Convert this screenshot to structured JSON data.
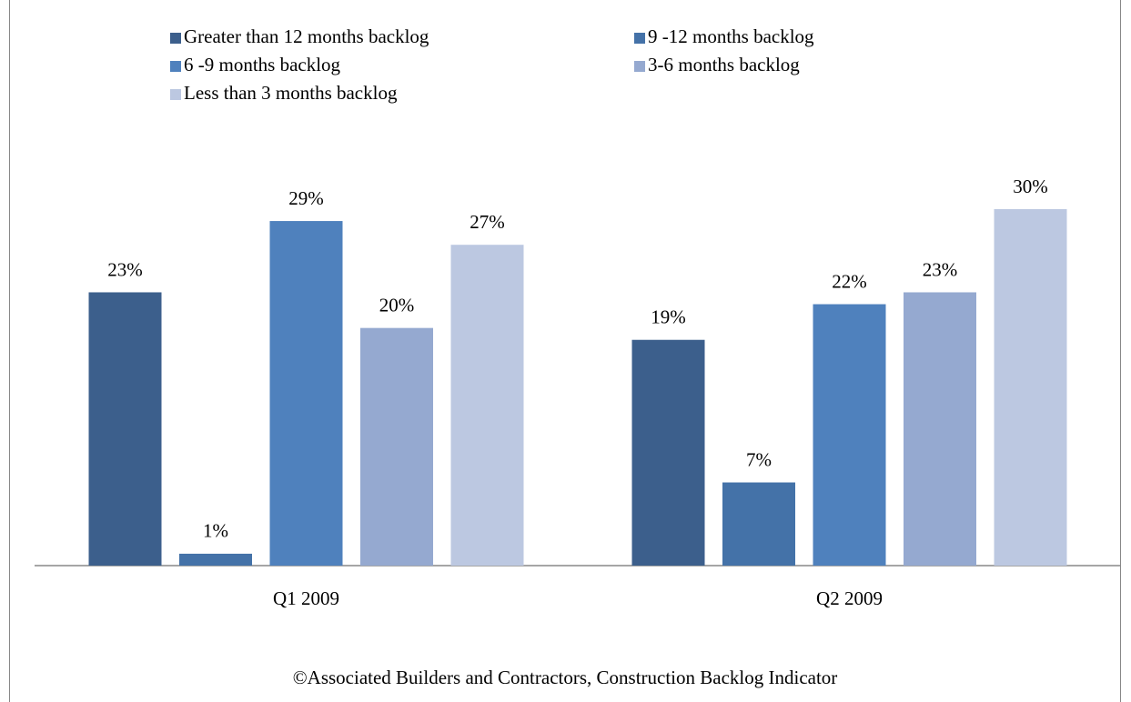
{
  "chart_data": {
    "type": "bar",
    "categories": [
      "Q1 2009",
      "Q2 2009"
    ],
    "series": [
      {
        "name": "Greater than 12 months backlog",
        "color": "#3c5f8c",
        "values": [
          23,
          19
        ],
        "value_labels": [
          "23%",
          "19%"
        ]
      },
      {
        "name": "9 -12 months backlog",
        "color": "#4472a8",
        "values": [
          1,
          7
        ],
        "value_labels": [
          "1%",
          "7%"
        ]
      },
      {
        "name": "6 -9 months backlog",
        "color": "#4f81bd",
        "values": [
          29,
          22
        ],
        "value_labels": [
          "29%",
          "22%"
        ]
      },
      {
        "name": "3-6 months backlog",
        "color": "#95a9d0",
        "values": [
          20,
          23
        ],
        "value_labels": [
          "20%",
          "23%"
        ]
      },
      {
        "name": "Less than 3 months backlog",
        "color": "#bcc8e1",
        "values": [
          27,
          30
        ],
        "value_labels": [
          "27%",
          "30%"
        ]
      }
    ],
    "footer": "©Associated Builders and Contractors, Construction Backlog Indicator"
  }
}
